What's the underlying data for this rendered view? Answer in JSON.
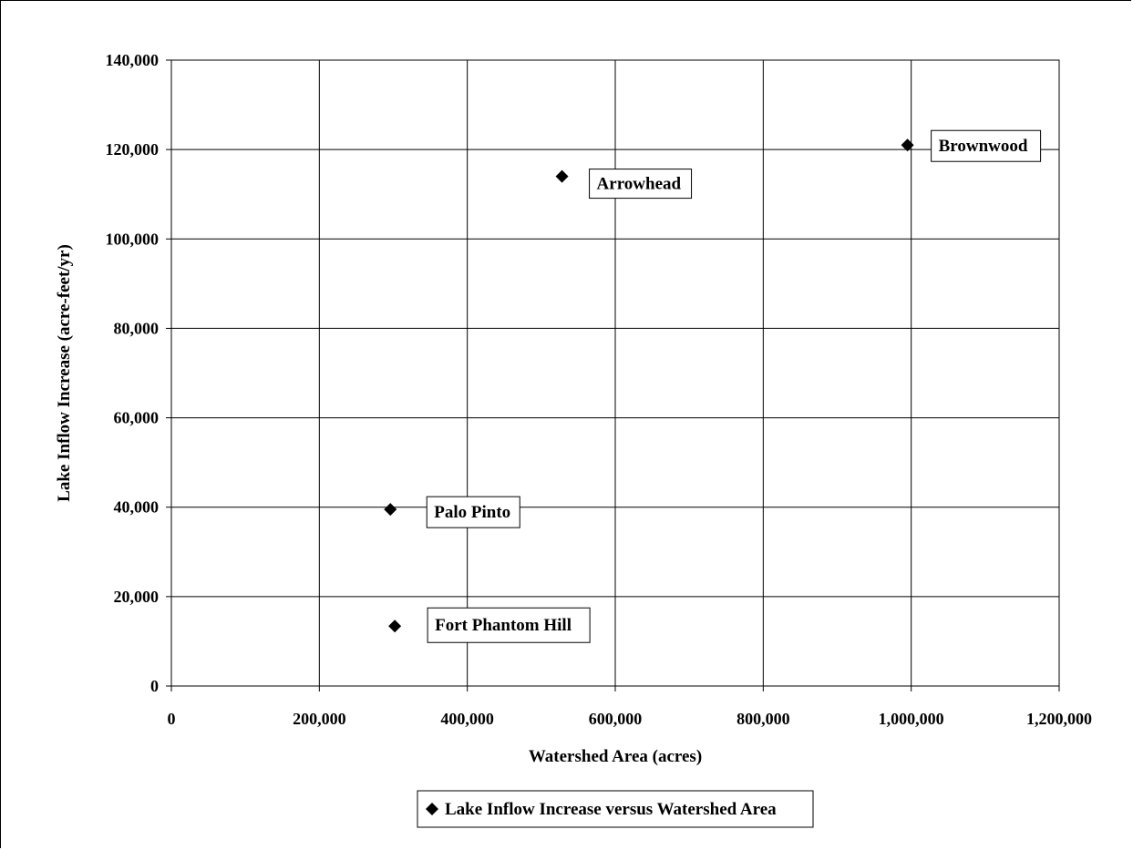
{
  "chart_data": {
    "type": "scatter",
    "title": "",
    "xlabel": "Watershed Area (acres)",
    "ylabel": "Lake Inflow Increase (acre-feet/yr)",
    "xlim": [
      0,
      1200000
    ],
    "ylim": [
      0,
      140000
    ],
    "x_ticks": [
      "0",
      "200,000",
      "400,000",
      "600,000",
      "800,000",
      "1,000,000",
      "1,200,000"
    ],
    "y_ticks": [
      "0",
      "20,000",
      "40,000",
      "60,000",
      "80,000",
      "100,000",
      "120,000",
      "140,000"
    ],
    "grid": true,
    "legend_position": "bottom",
    "series": [
      {
        "name": "Lake Inflow Increase versus Watershed Area",
        "marker": "diamond",
        "color": "#000000",
        "points": [
          {
            "label": "Brownwood",
            "x": 995000,
            "y": 121000
          },
          {
            "label": "Arrowhead",
            "x": 528000,
            "y": 114000
          },
          {
            "label": "Palo Pinto",
            "x": 296000,
            "y": 39500
          },
          {
            "label": "Fort Phantom Hill",
            "x": 302000,
            "y": 13400
          }
        ]
      }
    ]
  }
}
